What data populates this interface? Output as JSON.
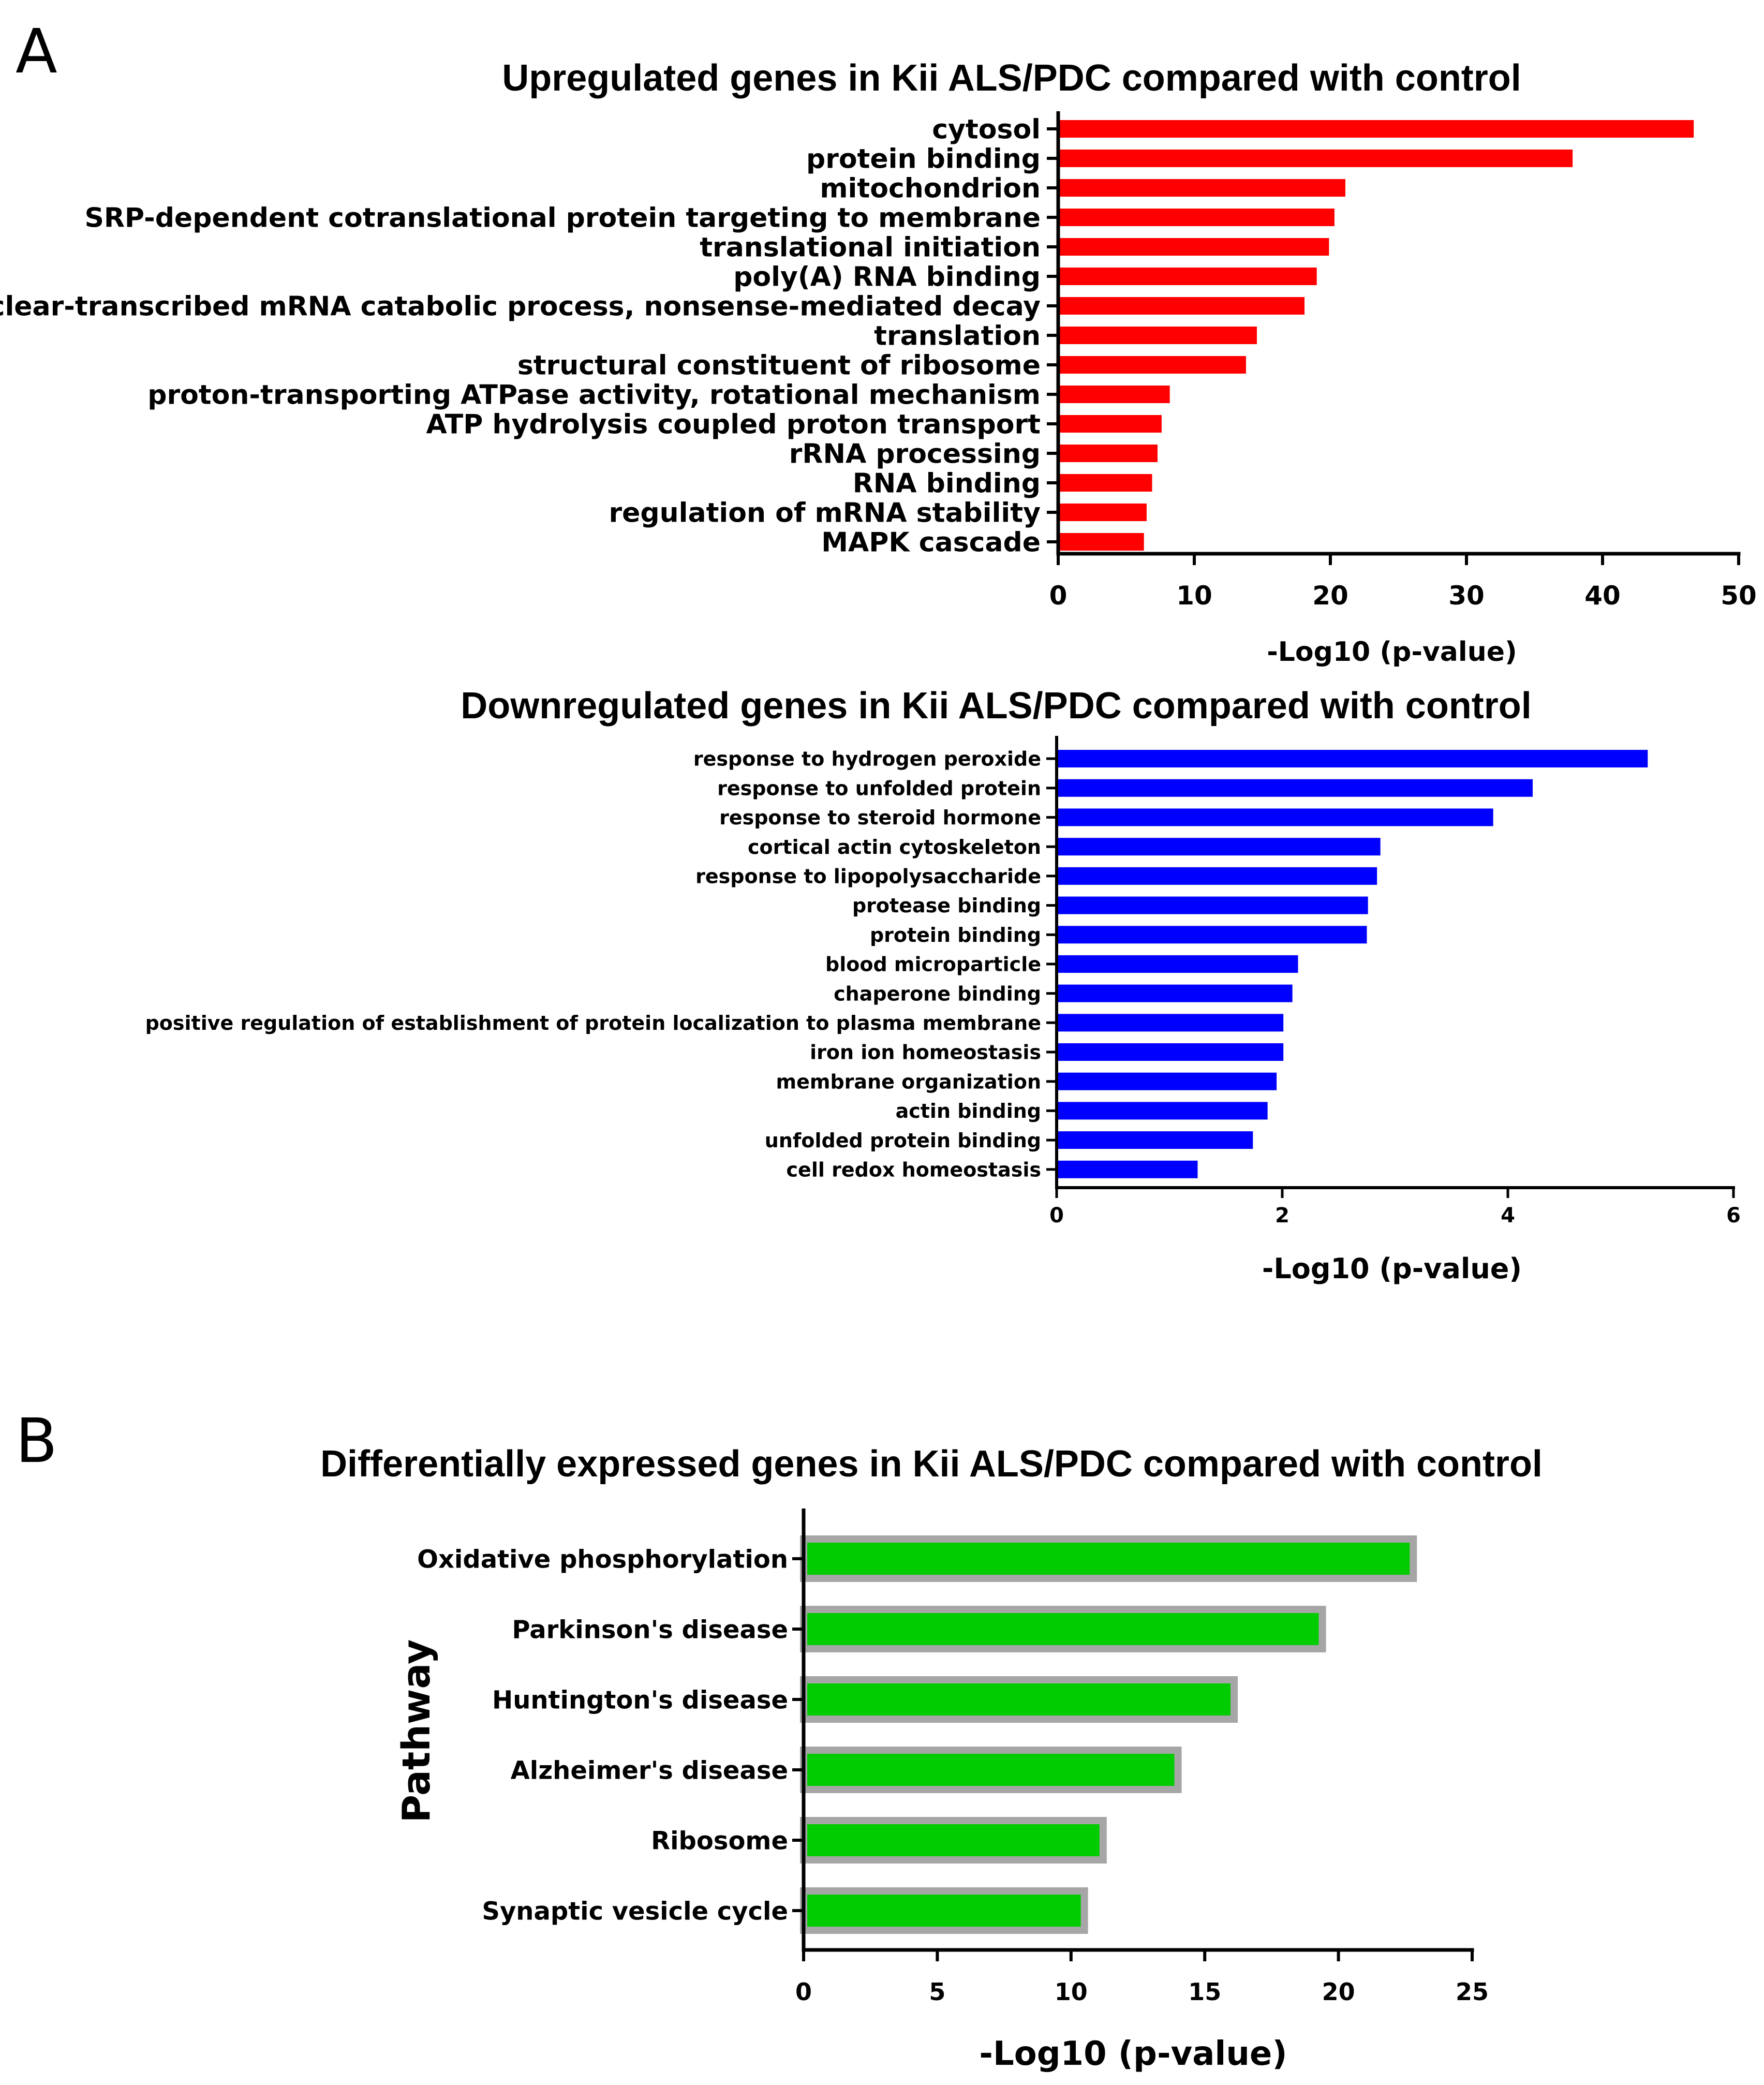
{
  "panels": [
    {
      "letter": "A"
    },
    {
      "letter": "B"
    }
  ],
  "chart_data": [
    {
      "type": "bar",
      "orientation": "horizontal",
      "title": "Upregulated genes in Kii ALS/PDC compared with control",
      "xlabel": "-Log10 (p-value)",
      "ylabel": "",
      "xlim": [
        0,
        50
      ],
      "xticks": [
        0,
        10,
        20,
        30,
        40,
        50
      ],
      "grid": false,
      "color": "#ff0000",
      "categories": [
        "cytosol",
        "protein binding",
        "mitochondrion",
        "SRP-dependent cotranslational protein targeting to membrane",
        "translational initiation",
        "poly(A) RNA binding",
        "nuclear-transcribed mRNA catabolic process, nonsense-mediated decay",
        "translation",
        "structural constituent of ribosome",
        "proton-transporting ATPase activity, rotational mechanism",
        "ATP hydrolysis coupled proton transport",
        "rRNA processing",
        "RNA binding",
        "regulation of mRNA stability",
        "MAPK cascade"
      ],
      "values": [
        46.7,
        37.8,
        21.1,
        20.3,
        19.9,
        19.0,
        18.1,
        14.6,
        13.8,
        8.2,
        7.6,
        7.3,
        6.9,
        6.5,
        6.3
      ]
    },
    {
      "type": "bar",
      "orientation": "horizontal",
      "title": "Downregulated genes in Kii ALS/PDC compared with control",
      "xlabel": "-Log10 (p-value)",
      "ylabel": "",
      "xlim": [
        0,
        6
      ],
      "xticks": [
        0,
        2,
        4,
        6
      ],
      "grid": false,
      "color": "#0000ff",
      "categories": [
        "response to hydrogen peroxide",
        "response to unfolded protein",
        "response to steroid hormone",
        "cortical actin cytoskeleton",
        "response to lipopolysaccharide",
        "protease binding",
        "protein binding",
        "blood microparticle",
        "chaperone binding",
        "positive regulation of establishment of protein localization to plasma membrane",
        "iron ion homeostasis",
        "membrane organization",
        "actin binding",
        "unfolded protein binding",
        "cell redox homeostasis"
      ],
      "values": [
        5.24,
        4.22,
        3.87,
        2.87,
        2.84,
        2.76,
        2.75,
        2.14,
        2.09,
        2.01,
        2.01,
        1.95,
        1.87,
        1.74,
        1.25
      ]
    },
    {
      "type": "bar",
      "orientation": "horizontal",
      "title": "Differentially expressed genes in Kii ALS/PDC compared with control",
      "xlabel": "-Log10 (p-value)",
      "ylabel": "Pathway",
      "xlim": [
        0,
        25
      ],
      "xticks": [
        0,
        5,
        10,
        15,
        20,
        25
      ],
      "grid": false,
      "color": "#00cc00",
      "border_color": "#a6a6a6",
      "categories": [
        "Oxidative phosphorylation",
        "Parkinson's disease",
        "Huntington's disease",
        "Alzheimer's disease",
        "Ribosome",
        "Synaptic vesicle cycle"
      ],
      "values": [
        22.8,
        19.4,
        16.1,
        14.0,
        11.2,
        10.5
      ]
    }
  ]
}
